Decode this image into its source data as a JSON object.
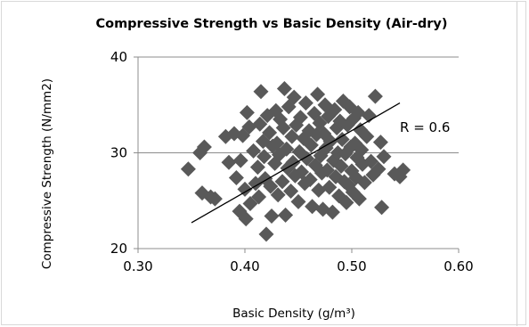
{
  "chart_data": {
    "type": "scatter",
    "title": "Compressive Strength vs Basic Density (Air-dry)",
    "xlabel": "Basic Density (g/m³)",
    "ylabel": "Compressive Strength (N/mm2)",
    "xlim": [
      0.3,
      0.6
    ],
    "ylim": [
      20,
      40
    ],
    "xticks": [
      "0.30",
      "0.40",
      "0.50",
      "0.60"
    ],
    "yticks": [
      "20",
      "30",
      "40"
    ],
    "grid": "horizontal",
    "marker": "diamond",
    "marker_color": "#595959",
    "trendline": {
      "type": "linear",
      "from": [
        0.35,
        22.7
      ],
      "to": [
        0.545,
        35.2
      ],
      "color": "#000000"
    },
    "annotation": "R = 0.6",
    "points": [
      [
        0.347,
        28.3
      ],
      [
        0.358,
        30.0
      ],
      [
        0.362,
        30.6
      ],
      [
        0.36,
        25.8
      ],
      [
        0.368,
        25.4
      ],
      [
        0.372,
        25.2
      ],
      [
        0.382,
        31.7
      ],
      [
        0.385,
        29.0
      ],
      [
        0.39,
        32.0
      ],
      [
        0.392,
        27.4
      ],
      [
        0.396,
        29.2
      ],
      [
        0.395,
        23.9
      ],
      [
        0.398,
        31.8
      ],
      [
        0.4,
        26.2
      ],
      [
        0.401,
        23.1
      ],
      [
        0.402,
        34.2
      ],
      [
        0.404,
        32.7
      ],
      [
        0.405,
        24.7
      ],
      [
        0.408,
        30.2
      ],
      [
        0.41,
        26.8
      ],
      [
        0.412,
        28.5
      ],
      [
        0.413,
        25.4
      ],
      [
        0.414,
        33.0
      ],
      [
        0.415,
        36.4
      ],
      [
        0.417,
        31.2
      ],
      [
        0.418,
        29.6
      ],
      [
        0.419,
        27.3
      ],
      [
        0.42,
        21.5
      ],
      [
        0.421,
        33.9
      ],
      [
        0.423,
        32.1
      ],
      [
        0.424,
        26.5
      ],
      [
        0.425,
        23.4
      ],
      [
        0.426,
        30.7
      ],
      [
        0.428,
        28.9
      ],
      [
        0.429,
        34.4
      ],
      [
        0.43,
        31.0
      ],
      [
        0.431,
        25.6
      ],
      [
        0.432,
        29.8
      ],
      [
        0.433,
        33.5
      ],
      [
        0.435,
        27.0
      ],
      [
        0.436,
        32.6
      ],
      [
        0.437,
        36.7
      ],
      [
        0.438,
        23.5
      ],
      [
        0.439,
        30.4
      ],
      [
        0.44,
        28.4
      ],
      [
        0.441,
        34.8
      ],
      [
        0.443,
        26.0
      ],
      [
        0.444,
        31.7
      ],
      [
        0.445,
        29.0
      ],
      [
        0.446,
        35.8
      ],
      [
        0.447,
        27.6
      ],
      [
        0.448,
        32.9
      ],
      [
        0.45,
        24.9
      ],
      [
        0.451,
        30.1
      ],
      [
        0.452,
        33.7
      ],
      [
        0.453,
        28.0
      ],
      [
        0.455,
        31.5
      ],
      [
        0.456,
        26.8
      ],
      [
        0.457,
        35.2
      ],
      [
        0.458,
        29.4
      ],
      [
        0.46,
        32.3
      ],
      [
        0.461,
        27.2
      ],
      [
        0.462,
        30.8
      ],
      [
        0.463,
        24.4
      ],
      [
        0.465,
        34.1
      ],
      [
        0.466,
        28.7
      ],
      [
        0.467,
        31.9
      ],
      [
        0.468,
        36.1
      ],
      [
        0.469,
        26.1
      ],
      [
        0.47,
        33.1
      ],
      [
        0.471,
        29.7
      ],
      [
        0.472,
        27.9
      ],
      [
        0.473,
        24.1
      ],
      [
        0.474,
        32.0
      ],
      [
        0.475,
        35.0
      ],
      [
        0.476,
        30.5
      ],
      [
        0.477,
        28.2
      ],
      [
        0.478,
        33.8
      ],
      [
        0.479,
        26.4
      ],
      [
        0.48,
        31.2
      ],
      [
        0.482,
        23.8
      ],
      [
        0.483,
        29.2
      ],
      [
        0.484,
        34.5
      ],
      [
        0.485,
        27.5
      ],
      [
        0.486,
        32.6
      ],
      [
        0.487,
        30.0
      ],
      [
        0.488,
        25.5
      ],
      [
        0.489,
        33.3
      ],
      [
        0.49,
        28.6
      ],
      [
        0.491,
        31.4
      ],
      [
        0.492,
        35.4
      ],
      [
        0.493,
        27.0
      ],
      [
        0.494,
        29.9
      ],
      [
        0.495,
        24.8
      ],
      [
        0.496,
        32.9
      ],
      [
        0.497,
        26.6
      ],
      [
        0.498,
        34.8
      ],
      [
        0.499,
        30.6
      ],
      [
        0.5,
        28.1
      ],
      [
        0.501,
        25.9
      ],
      [
        0.502,
        33.6
      ],
      [
        0.503,
        31.0
      ],
      [
        0.504,
        27.4
      ],
      [
        0.505,
        29.5
      ],
      [
        0.506,
        34.2
      ],
      [
        0.507,
        25.2
      ],
      [
        0.508,
        32.4
      ],
      [
        0.509,
        30.3
      ],
      [
        0.51,
        28.8
      ],
      [
        0.512,
        26.9
      ],
      [
        0.514,
        31.7
      ],
      [
        0.516,
        33.9
      ],
      [
        0.518,
        29.1
      ],
      [
        0.52,
        27.7
      ],
      [
        0.522,
        35.9
      ],
      [
        0.525,
        28.3
      ],
      [
        0.527,
        31.1
      ],
      [
        0.528,
        24.3
      ],
      [
        0.53,
        29.6
      ],
      [
        0.54,
        27.8
      ],
      [
        0.548,
        28.2
      ],
      [
        0.545,
        27.5
      ]
    ]
  }
}
